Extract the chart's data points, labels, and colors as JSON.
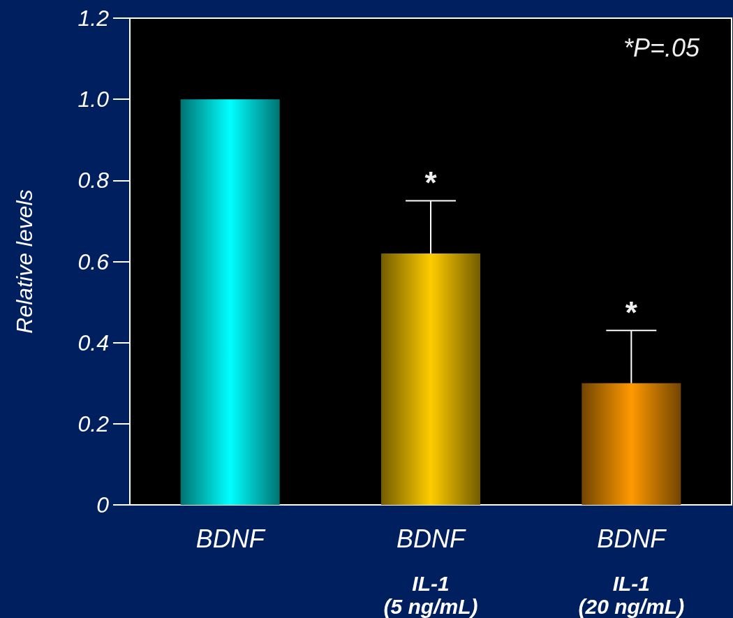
{
  "chart_data": {
    "type": "bar",
    "ylabel": "Relative levels",
    "categories": [
      "BDNF",
      "BDNF\nIL-1\n(5 ng/mL)",
      "BDNF\nIL-1\n(20 ng/mL)"
    ],
    "values": [
      1.0,
      0.62,
      0.3
    ],
    "colors": [
      "#00ffff",
      "#ffcc00",
      "#ff9900"
    ],
    "errors": [
      null,
      [
        0.62,
        0.75
      ],
      [
        0.3,
        0.43
      ]
    ],
    "ylim": [
      0,
      1.2
    ],
    "yticks": [
      {
        "value": 0,
        "label": "0"
      },
      {
        "value": 0.2,
        "label": "0.2"
      },
      {
        "value": 0.4,
        "label": "0.4"
      },
      {
        "value": 0.6,
        "label": "0.6"
      },
      {
        "value": 0.8,
        "label": "0.8"
      },
      {
        "value": 1.0,
        "label": "1.0"
      },
      {
        "value": 1.2,
        "label": "1.2"
      }
    ],
    "grid": false,
    "annotations": [
      "*P=.05",
      {
        "text": "*",
        "x": "BDNF\nIL-1\n(5 ng/mL)",
        "y": 0.75
      },
      {
        "text": "*",
        "x": "BDNF\nIL-1\n(20 ng/mL)",
        "y": 0.43
      }
    ]
  }
}
